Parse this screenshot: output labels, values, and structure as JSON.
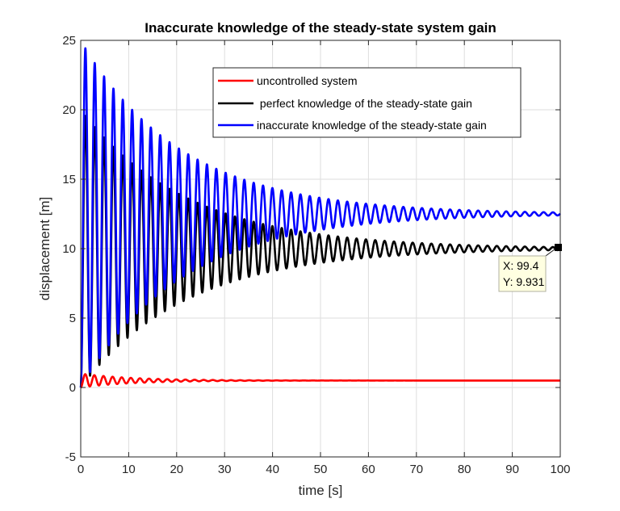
{
  "chart_data": {
    "type": "line",
    "title": "Inaccurate knowledge of the steady-state system gain",
    "xlabel": "time [s]",
    "ylabel": "displacement [m]",
    "xlim": [
      0,
      100
    ],
    "ylim": [
      -5,
      25
    ],
    "xticks": [
      0,
      10,
      20,
      30,
      40,
      50,
      60,
      70,
      80,
      90,
      100
    ],
    "yticks": [
      -5,
      0,
      5,
      10,
      15,
      20,
      25
    ],
    "grid": true,
    "legend_position": "top-right",
    "series": [
      {
        "name": "uncontrolled system",
        "color": "#ff0000",
        "steady_state": 0.5,
        "peak": 1.0,
        "period_s": 1.9,
        "x": [
          0,
          0.95,
          1.9,
          2.85,
          3.8,
          10,
          20,
          30,
          40,
          50,
          60,
          70,
          80,
          90,
          100
        ],
        "y": [
          0,
          1.0,
          0.05,
          0.92,
          0.12,
          0.7,
          0.58,
          0.53,
          0.51,
          0.5,
          0.5,
          0.5,
          0.5,
          0.5,
          0.5
        ]
      },
      {
        "name": " perfect knowledge of the steady-state gain",
        "color": "#000000",
        "steady_state": 10,
        "x": [
          0,
          1,
          2,
          3,
          4,
          10,
          20,
          30,
          40,
          50,
          60,
          70,
          80,
          90,
          99.4,
          100
        ],
        "y": [
          0,
          19.5,
          0.6,
          18.6,
          1.9,
          15.5,
          13.3,
          12.3,
          11.0,
          10.5,
          10.3,
          10.15,
          10.05,
          10.0,
          9.931,
          10.0
        ]
      },
      {
        "name": "inaccurate knowledge of the steady-state gain",
        "color": "#0000ff",
        "steady_state": 12.5,
        "x": [
          0,
          1,
          2,
          3,
          4,
          10,
          20,
          30,
          40,
          50,
          60,
          70,
          80,
          90,
          100
        ],
        "y": [
          0,
          24.4,
          0.7,
          23.2,
          2.4,
          19.5,
          16.8,
          15.2,
          14.1,
          13.5,
          13.0,
          12.8,
          12.6,
          12.5,
          12.5
        ]
      }
    ],
    "datatip": {
      "x_text": "X: 99.4",
      "y_text": "Y: 9.931",
      "x": 99.4,
      "y": 9.931
    }
  }
}
